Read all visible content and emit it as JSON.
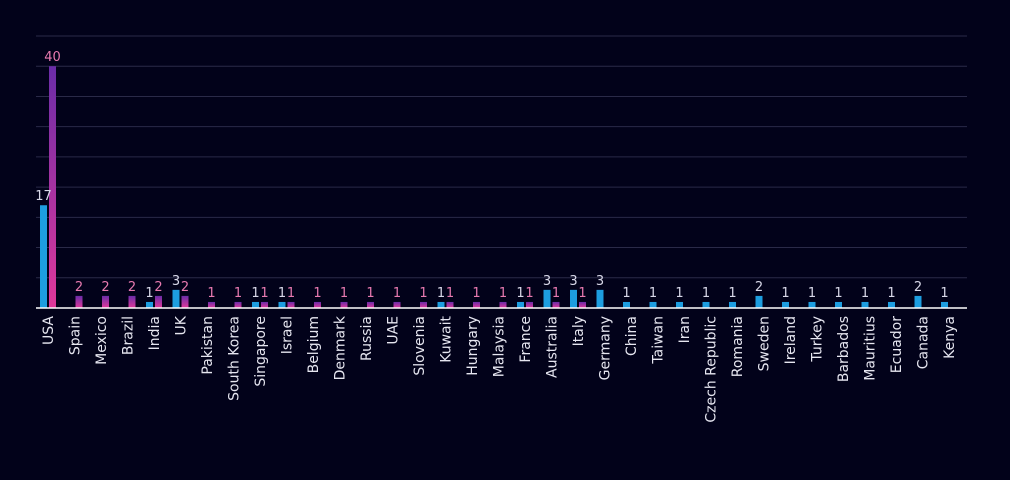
{
  "chart_data": {
    "type": "bar",
    "categories": [
      "USA",
      "Spain",
      "Mexico",
      "Brazil",
      "India",
      "UK",
      "Pakistan",
      "South Korea",
      "Singapore",
      "Israel",
      "Belgium",
      "Denmark",
      "Russia",
      "UAE",
      "Slovenia",
      "Kuwait",
      "Hungary",
      "Malaysia",
      "France",
      "Australia",
      "Italy",
      "Germany",
      "China",
      "Taiwan",
      "Iran",
      "Czech Republic",
      "Romania",
      "Sweden",
      "Ireland",
      "Turkey",
      "Barbados",
      "Mauritius",
      "Ecuador",
      "Canada",
      "Kenya"
    ],
    "series": [
      {
        "values": [
          17,
          null,
          null,
          null,
          1,
          3,
          null,
          null,
          1,
          1,
          null,
          null,
          null,
          null,
          null,
          1,
          null,
          null,
          1,
          3,
          3,
          3,
          1,
          1,
          1,
          1,
          1,
          2,
          1,
          1,
          1,
          1,
          1,
          2,
          1
        ]
      },
      {
        "values": [
          40,
          2,
          2,
          2,
          2,
          2,
          1,
          1,
          1,
          1,
          1,
          1,
          1,
          1,
          1,
          1,
          1,
          1,
          1,
          1,
          1,
          null,
          null,
          null,
          null,
          null,
          null,
          null,
          null,
          null,
          null,
          null,
          null,
          null,
          null
        ]
      }
    ],
    "ylim": [
      0,
      45
    ],
    "grid": true,
    "legend": "none",
    "colors": {
      "series_a": "#1d9ee0",
      "series_b_top": "#6a2ca8",
      "series_b_bottom": "#e0389a",
      "gridline": "#2a2a48",
      "axis": "#ffffff",
      "background": "#02021a"
    }
  }
}
